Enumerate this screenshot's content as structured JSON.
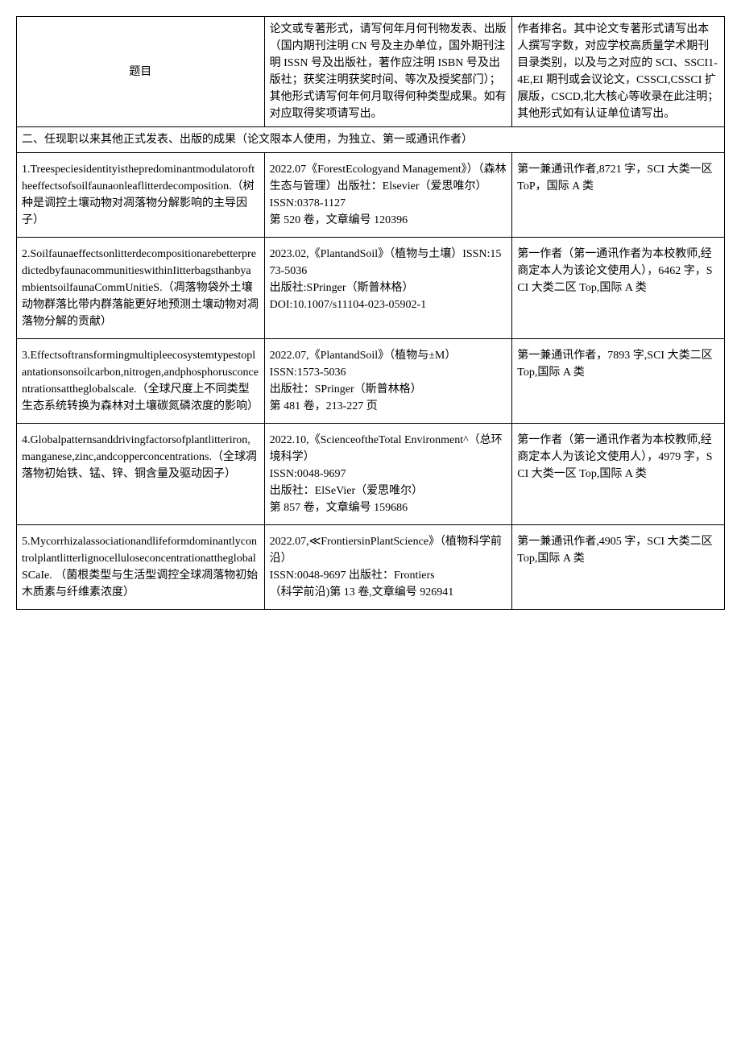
{
  "table": {
    "header": {
      "col1": "题目",
      "col2": "论文或专著形式，请写何年月何刊物发表、出版（国内期刊注明 CN 号及主办单位，国外期刊注明 ISSN 号及出版社，著作应注明 ISBN 号及出版社；获奖注明获奖时间、等次及授奖部门）；其他形式请写何年何月取得何种类型成果。如有对应取得奖项请写出。",
      "col3": "作者排名。其中论文专著形式请写出本人撰写字数，对应学校高质量学术期刊目录类别，以及与之对应的 SCI、SSCI1-4E,EI 期刊或会议论文，CSSCI,CSSCI 扩展版，CSCD,北大核心等收录在此注明；\n其他形式如有认证单位请写出。"
    },
    "section_title": "二、任现职以来其他正式发表、出版的成果（论文限本人使用，为独立、第一或通讯作者）",
    "rows": [
      {
        "title": "1.Treespeciesidentityisthepredominantmodulatoroftheeffectsofsoilfaunaonleaflitterdecomposition.（树种是调控土壤动物对凋落物分解影响的主导因子）",
        "publication": "2022.07《ForestEcologyand Management》）（森林生态与管理）出版社：Elsevier（爱思唯尔）\nISSN:0378-1127\n第 520 卷，文章编号 120396",
        "author": "第一兼通讯作者,8721 字，SCI 大类一区 ToP，国际 A 类"
      },
      {
        "title": "2.SoilfaunaeffectsonlitterdecompositionarebetterpredictedbyfaunacommunitieswithinIitterbagsthanbyambientsoilfaunaCommUnitieS.（凋落物袋外土壤动物群落比带内群落能更好地预测土壤动物对凋落物分解的贡献）",
        "publication": "2023.02,《PlantandSoil》（植物与土壤）ISSN:1573-5036\n出版社:SPringer（斯普林格）\nDOI:10.1007/s11104-023-05902-1",
        "author": "第一作者（第一通讯作者为本校教师,经商定本人为该论文使用人），6462 字，SCI 大类二区 Top,国际 A 类"
      },
      {
        "title": "3.Effectsoftransformingmultipleecosystemtypestoplantationsonsoilcarbon,nitrogen,andphosphorusconcentrationsattheglobalscale.（全球尺度上不同类型生态系统转换为森林对土壤碳氮磷浓度的影响）",
        "publication": "2022.07,《PlantandSoil》（植物与±M）\nISSN:1573-5036\n出版社：SPringer（斯普林格）\n第 481 卷，213-227 页",
        "author": "第一兼通讯作者，7893 字,SCI 大类二区 Top,国际 A 类"
      },
      {
        "title": "4.Globalpatternsanddrivingfactorsofplantlitteriron,manganese,zinc,andcopperconcentrations.（全球凋落物初始铁、锰、锌、铜含量及驱动因子）",
        "publication": "2022.10,《ScienceoftheTotal Environment^（总环境科学）\nISSN:0048-9697\n出版社：ElSeVier（爱思唯尔）\n第 857 卷，文章编号 159686",
        "author": "第一作者（第一通讯作者为本校教师,经商定本人为该论文使用人），4979 字，SCI 大类一区 Top,国际 A 类"
      },
      {
        "title": "5.MycorrhizalassociationandlifeformdominantlycontrolplantlitterlignocelluloseconcentrationattheglobalSCaIe. （菌根类型与生活型调控全球凋落物初始木质素与纤维素浓度）",
        "publication": "2022.07,≪FrontiersinPlantScience》（植物科学前沿）\nISSN:0048-9697 出版社：Frontiers\n（科学前沿)第 13 卷,文章编号 926941",
        "author": "第一兼通讯作者,4905 字，SCI 大类二区 Top,国际 A 类"
      }
    ]
  }
}
